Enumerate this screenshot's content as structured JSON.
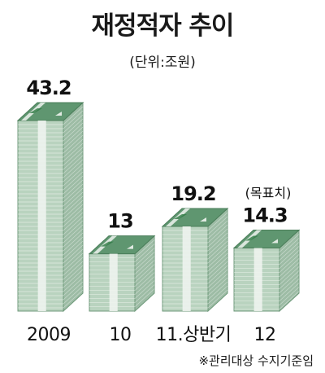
{
  "title": "재정적자 추이",
  "unit": "(단위:조원)",
  "footnote": "※관리대상 수지기준임",
  "colors": {
    "bill_front": "#b9d3bf",
    "bill_side": "#9dbca5",
    "bill_top": "#5f9670",
    "band": "#eef3ee",
    "stripe": "#ffffff",
    "mark": "#2f7a45"
  },
  "chart_data": {
    "type": "bar",
    "categories": [
      "2009",
      "10",
      "11.상반기",
      "12"
    ],
    "values": [
      43.2,
      13,
      19.2,
      14.3
    ],
    "value_labels": [
      "43.2",
      "13",
      "19.2",
      "14.3"
    ],
    "notes": [
      "",
      "",
      "",
      "(목표치)"
    ],
    "title": "재정적자 추이",
    "ylabel": "",
    "unit": "(단위:조원)",
    "ylim": [
      0,
      43.2
    ],
    "grid": false,
    "legend": "none"
  }
}
